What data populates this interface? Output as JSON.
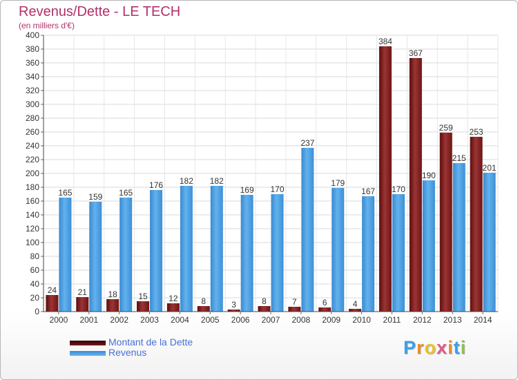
{
  "title": "Revenus/Dette - LE TECH",
  "subtitle": "(en milliers d'€)",
  "logo_text": "Proxiti",
  "colors": {
    "dette": "#8b2a2a",
    "revenus": "#4d9fe0",
    "title": "#b0306a",
    "legend_text": "#4a6fd6"
  },
  "legend": [
    {
      "label": "Montant de la Dette",
      "color": "#6b0f0f"
    },
    {
      "label": "Revenus",
      "color": "#4d9fe0"
    }
  ],
  "chart_data": {
    "type": "bar",
    "title": "Revenus/Dette - LE TECH",
    "subtitle": "(en milliers d'€)",
    "categories": [
      "2000",
      "2001",
      "2002",
      "2003",
      "2004",
      "2005",
      "2006",
      "2007",
      "2008",
      "2009",
      "2010",
      "2011",
      "2012",
      "2013",
      "2014"
    ],
    "series": [
      {
        "name": "Montant de la Dette",
        "values": [
          24,
          21,
          18,
          15,
          12,
          8,
          3,
          8,
          7,
          6,
          4,
          384,
          367,
          259,
          253
        ]
      },
      {
        "name": "Revenus",
        "values": [
          165,
          159,
          165,
          176,
          182,
          182,
          169,
          170,
          237,
          179,
          167,
          170,
          190,
          215,
          201
        ]
      }
    ],
    "ylim": [
      0,
      400
    ],
    "yticks": [
      0,
      20,
      40,
      60,
      80,
      100,
      120,
      140,
      160,
      180,
      200,
      220,
      240,
      260,
      280,
      300,
      320,
      340,
      360,
      380,
      400
    ],
    "grid": true,
    "legend_position": "bottom-left"
  }
}
